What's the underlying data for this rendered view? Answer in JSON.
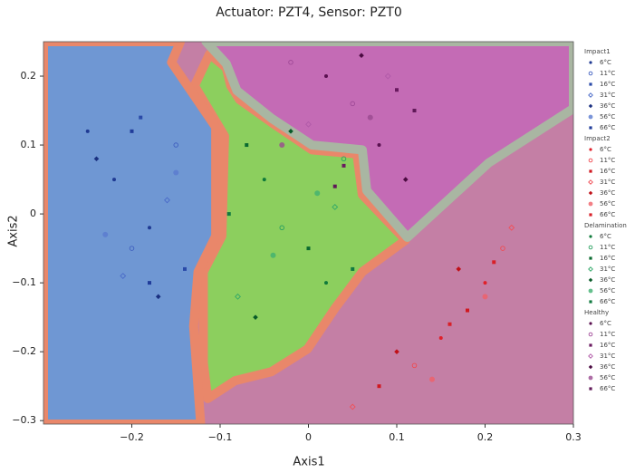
{
  "chart_data": {
    "type": "scatter",
    "title": "Actuator: PZT4, Sensor: PZT0",
    "x_label": "Axis1",
    "y_label": "Axis2",
    "xlim": [
      -0.3,
      0.3
    ],
    "ylim": [
      -0.305,
      0.25
    ],
    "xticks": [
      {
        "value": -0.2,
        "label": "−0.2"
      },
      {
        "value": -0.1,
        "label": "−0.1"
      },
      0,
      0.1,
      0.2,
      0.3
    ],
    "yticks": [
      {
        "value": -0.3,
        "label": "−0.3"
      },
      {
        "value": -0.2,
        "label": "−0.2"
      },
      {
        "value": -0.1,
        "label": "−0.1"
      },
      0,
      0.1,
      0.2
    ],
    "background": "#c47fa5",
    "regions": [
      {
        "color": "#8ccf5e",
        "border": "#e9876a",
        "x": [
          -0.112,
          -0.093,
          -0.088,
          -0.078,
          -0.042,
          0.004,
          0.055,
          0.061,
          0.11,
          0.061,
          0.03,
          -0.001,
          -0.042,
          -0.083,
          -0.114,
          -0.119,
          -0.119,
          -0.098,
          -0.095,
          -0.129
        ],
        "y": [
          0.232,
          0.212,
          0.186,
          0.166,
          0.133,
          0.093,
          0.087,
          0.028,
          -0.038,
          -0.084,
          -0.137,
          -0.196,
          -0.229,
          -0.242,
          -0.268,
          -0.216,
          -0.084,
          -0.032,
          0.113,
          0.186
        ]
      },
      {
        "color": "#c46bb5",
        "border": "#a9b6a2",
        "x": [
          -0.116,
          -0.093,
          -0.081,
          -0.042,
          0.004,
          0.061,
          0.066,
          0.112,
          0.204,
          0.3,
          0.3
        ],
        "y": [
          0.25,
          0.218,
          0.179,
          0.139,
          0.1,
          0.093,
          0.034,
          -0.034,
          0.074,
          0.153,
          0.25
        ]
      },
      {
        "color": "#6f97d3",
        "border": "#e9876a",
        "x": [
          -0.3,
          -0.145,
          -0.155,
          -0.105,
          -0.105,
          -0.125,
          -0.13,
          -0.122,
          -0.3
        ],
        "y": [
          0.25,
          0.25,
          0.22,
          0.126,
          -0.032,
          -0.084,
          -0.163,
          -0.305,
          -0.305
        ]
      }
    ],
    "groups": [
      {
        "title": "Impact1",
        "series": [
          {
            "name": "6°C",
            "color": "#1f3a93",
            "marker": "circle",
            "x": [
              -0.22,
              -0.18,
              -0.25
            ],
            "y": [
              0.05,
              -0.02,
              0.12
            ]
          },
          {
            "name": "11°C",
            "color": "#3f5fbf",
            "marker": "open-circle",
            "x": [
              -0.2,
              -0.15
            ],
            "y": [
              -0.05,
              0.1
            ]
          },
          {
            "name": "16°C",
            "color": "#2a4aa8",
            "marker": "square",
            "x": [
              -0.19,
              -0.14
            ],
            "y": [
              0.14,
              -0.08
            ]
          },
          {
            "name": "31°C",
            "color": "#4a6ac8",
            "marker": "open-diamond",
            "x": [
              -0.21,
              -0.16
            ],
            "y": [
              -0.09,
              0.02
            ]
          },
          {
            "name": "36°C",
            "color": "#1a3080",
            "marker": "diamond",
            "x": [
              -0.24,
              -0.17
            ],
            "y": [
              0.08,
              -0.12
            ]
          },
          {
            "name": "56°C",
            "color": "#5a7ad0",
            "marker": "big-circle",
            "x": [
              -0.23,
              -0.15
            ],
            "y": [
              -0.03,
              0.06
            ]
          },
          {
            "name": "66°C",
            "color": "#203c9a",
            "marker": "square",
            "x": [
              -0.18,
              -0.2
            ],
            "y": [
              -0.1,
              0.12
            ]
          }
        ]
      },
      {
        "title": "Impact2",
        "series": [
          {
            "name": "6°C",
            "color": "#e0202a",
            "marker": "circle",
            "x": [
              0.15,
              0.2
            ],
            "y": [
              -0.18,
              -0.1
            ]
          },
          {
            "name": "11°C",
            "color": "#f04a50",
            "marker": "open-circle",
            "x": [
              0.12,
              0.22
            ],
            "y": [
              -0.22,
              -0.05
            ]
          },
          {
            "name": "16°C",
            "color": "#d01820",
            "marker": "square",
            "x": [
              0.08,
              0.18
            ],
            "y": [
              -0.25,
              -0.14
            ]
          },
          {
            "name": "31°C",
            "color": "#f05058",
            "marker": "open-diamond",
            "x": [
              0.05,
              0.23
            ],
            "y": [
              -0.28,
              -0.02
            ]
          },
          {
            "name": "36°C",
            "color": "#c01018",
            "marker": "diamond",
            "x": [
              0.1,
              0.17
            ],
            "y": [
              -0.2,
              -0.08
            ]
          },
          {
            "name": "56°C",
            "color": "#f06068",
            "marker": "big-circle",
            "x": [
              0.2,
              0.14
            ],
            "y": [
              -0.12,
              -0.24
            ]
          },
          {
            "name": "66°C",
            "color": "#d82028",
            "marker": "square",
            "x": [
              0.16,
              0.21
            ],
            "y": [
              -0.16,
              -0.07
            ]
          }
        ]
      },
      {
        "title": "Delamination",
        "series": [
          {
            "name": "6°C",
            "color": "#0f7a3a",
            "marker": "circle",
            "x": [
              -0.05,
              0.02
            ],
            "y": [
              0.05,
              -0.1
            ]
          },
          {
            "name": "11°C",
            "color": "#2aa060",
            "marker": "open-circle",
            "x": [
              -0.03,
              0.04
            ],
            "y": [
              -0.02,
              0.08
            ]
          },
          {
            "name": "16°C",
            "color": "#0a6a30",
            "marker": "square",
            "x": [
              -0.07,
              0.0
            ],
            "y": [
              0.1,
              -0.05
            ]
          },
          {
            "name": "31°C",
            "color": "#30a868",
            "marker": "open-diamond",
            "x": [
              -0.08,
              0.03
            ],
            "y": [
              -0.12,
              0.01
            ]
          },
          {
            "name": "36°C",
            "color": "#085a28",
            "marker": "diamond",
            "x": [
              -0.02,
              -0.06
            ],
            "y": [
              0.12,
              -0.15
            ]
          },
          {
            "name": "56°C",
            "color": "#40b070",
            "marker": "big-circle",
            "x": [
              -0.04,
              0.01
            ],
            "y": [
              -0.06,
              0.03
            ]
          },
          {
            "name": "66°C",
            "color": "#107a40",
            "marker": "square",
            "x": [
              -0.09,
              0.05
            ],
            "y": [
              0.0,
              -0.08
            ]
          }
        ]
      },
      {
        "title": "Healthy",
        "series": [
          {
            "name": "6°C",
            "color": "#5a1050",
            "marker": "circle",
            "x": [
              0.02,
              0.08
            ],
            "y": [
              0.2,
              0.1
            ]
          },
          {
            "name": "11°C",
            "color": "#a04a98",
            "marker": "open-circle",
            "x": [
              0.05,
              -0.02
            ],
            "y": [
              0.16,
              0.22
            ]
          },
          {
            "name": "16°C",
            "color": "#6a1a60",
            "marker": "square",
            "x": [
              0.1,
              0.04
            ],
            "y": [
              0.18,
              0.07
            ]
          },
          {
            "name": "31°C",
            "color": "#b05aa8",
            "marker": "open-diamond",
            "x": [
              0.0,
              0.09
            ],
            "y": [
              0.13,
              0.2
            ]
          },
          {
            "name": "36°C",
            "color": "#4a0a40",
            "marker": "diamond",
            "x": [
              0.06,
              0.11
            ],
            "y": [
              0.23,
              0.05
            ]
          },
          {
            "name": "56°C",
            "color": "#9a4a90",
            "marker": "big-circle",
            "x": [
              -0.03,
              0.07
            ],
            "y": [
              0.1,
              0.14
            ]
          },
          {
            "name": "66°C",
            "color": "#601858",
            "marker": "square",
            "x": [
              0.03,
              0.12
            ],
            "y": [
              0.04,
              0.15
            ]
          }
        ]
      }
    ]
  }
}
